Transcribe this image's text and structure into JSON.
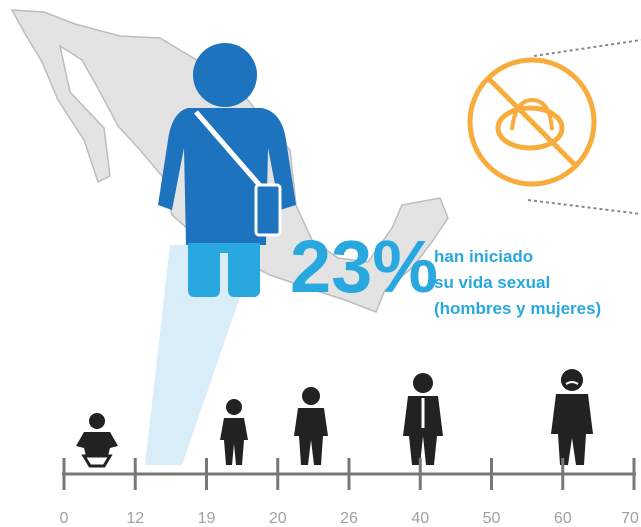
{
  "statistic": {
    "value": "23%",
    "lines": [
      "han iniciado",
      "su vida sexual",
      "(hombres y mujeres)"
    ]
  },
  "timeline": {
    "ticks": [
      0,
      12,
      19,
      20,
      26,
      40,
      50,
      60,
      70
    ]
  }
}
